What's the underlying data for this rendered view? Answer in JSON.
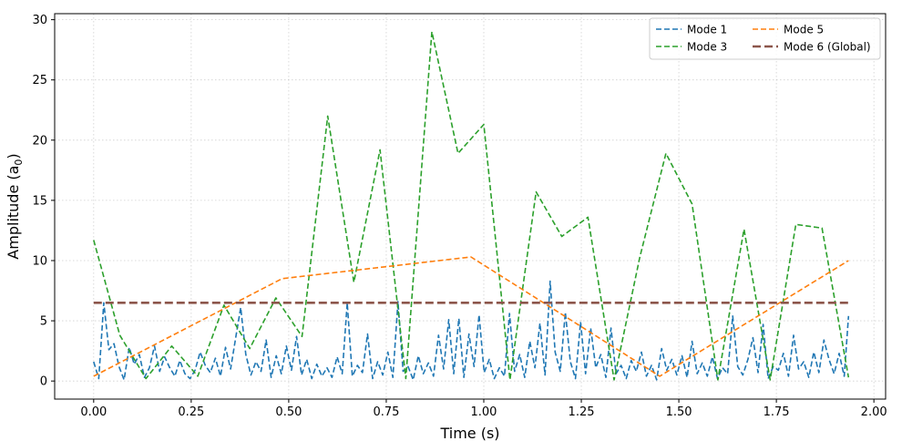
{
  "chart_data": {
    "type": "line",
    "xlabel": "Time (s)",
    "ylabel_main": "Amplitude (a",
    "ylabel_sub": "0",
    "ylabel_end": ")",
    "xlim": [
      -0.1,
      2.03
    ],
    "ylim": [
      -1.5,
      30.5
    ],
    "xticks": [
      0.0,
      0.25,
      0.5,
      0.75,
      1.0,
      1.25,
      1.5,
      1.75,
      2.0
    ],
    "xtick_labels": [
      "0.00",
      "0.25",
      "0.50",
      "0.75",
      "1.00",
      "1.25",
      "1.50",
      "1.75",
      "2.00"
    ],
    "yticks": [
      0,
      5,
      10,
      15,
      20,
      25,
      30
    ],
    "ytick_labels": [
      "0",
      "5",
      "10",
      "15",
      "20",
      "25",
      "30"
    ],
    "grid": true,
    "legend_position": "top-right",
    "legend_columns": 2,
    "series": [
      {
        "name": "Mode 1",
        "color": "#1f77b4",
        "dash": "6,3",
        "width": 1.6,
        "x": [
          0.0,
          0.013,
          0.026,
          0.039,
          0.052,
          0.065,
          0.078,
          0.091,
          0.104,
          0.117,
          0.13,
          0.143,
          0.156,
          0.169,
          0.182,
          0.195,
          0.208,
          0.221,
          0.234,
          0.247,
          0.26,
          0.273,
          0.286,
          0.299,
          0.312,
          0.325,
          0.338,
          0.351,
          0.364,
          0.377,
          0.39,
          0.403,
          0.416,
          0.429,
          0.442,
          0.455,
          0.468,
          0.481,
          0.494,
          0.507,
          0.52,
          0.533,
          0.546,
          0.559,
          0.572,
          0.585,
          0.598,
          0.611,
          0.624,
          0.637,
          0.65,
          0.663,
          0.676,
          0.689,
          0.702,
          0.715,
          0.728,
          0.741,
          0.754,
          0.767,
          0.78,
          0.793,
          0.806,
          0.819,
          0.832,
          0.845,
          0.858,
          0.871,
          0.884,
          0.897,
          0.91,
          0.923,
          0.936,
          0.949,
          0.962,
          0.975,
          0.988,
          1.001,
          1.014,
          1.027,
          1.04,
          1.053,
          1.066,
          1.079,
          1.092,
          1.105,
          1.118,
          1.131,
          1.144,
          1.157,
          1.17,
          1.183,
          1.196,
          1.209,
          1.222,
          1.235,
          1.248,
          1.261,
          1.274,
          1.287,
          1.3,
          1.313,
          1.326,
          1.339,
          1.352,
          1.365,
          1.378,
          1.391,
          1.404,
          1.417,
          1.43,
          1.443,
          1.456,
          1.469,
          1.482,
          1.495,
          1.508,
          1.521,
          1.534,
          1.547,
          1.56,
          1.573,
          1.586,
          1.599,
          1.612,
          1.625,
          1.638,
          1.651,
          1.664,
          1.677,
          1.69,
          1.703,
          1.716,
          1.729,
          1.742,
          1.755,
          1.768,
          1.781,
          1.794,
          1.807,
          1.82,
          1.833,
          1.846,
          1.859,
          1.872,
          1.885,
          1.898,
          1.911,
          1.924,
          1.935
        ],
        "y": [
          1.6,
          0.2,
          6.5,
          2.6,
          3.1,
          1.2,
          0.1,
          2.8,
          1.4,
          2.2,
          0.3,
          1.1,
          2.9,
          0.8,
          2.0,
          1.1,
          0.4,
          1.7,
          0.6,
          0.2,
          0.9,
          2.4,
          1.3,
          0.7,
          1.9,
          0.4,
          2.8,
          1.0,
          3.6,
          6.1,
          2.2,
          0.5,
          1.6,
          0.8,
          3.4,
          0.3,
          2.1,
          0.6,
          2.9,
          0.9,
          3.7,
          0.5,
          1.8,
          0.2,
          1.4,
          0.4,
          1.1,
          0.3,
          2.0,
          0.6,
          6.5,
          0.4,
          1.3,
          0.7,
          3.9,
          0.2,
          1.6,
          0.5,
          2.4,
          0.3,
          6.6,
          0.8,
          1.2,
          0.1,
          2.1,
          0.6,
          1.5,
          0.4,
          3.8,
          1.0,
          5.1,
          0.6,
          5.2,
          0.3,
          3.9,
          1.2,
          5.5,
          0.7,
          1.8,
          0.2,
          1.1,
          0.4,
          5.6,
          0.8,
          2.2,
          0.3,
          3.3,
          1.1,
          4.8,
          0.5,
          8.3,
          2.4,
          0.8,
          5.7,
          1.6,
          0.2,
          4.9,
          0.6,
          4.4,
          1.1,
          2.2,
          0.3,
          4.4,
          0.6,
          1.3,
          0.2,
          1.7,
          0.8,
          2.4,
          0.4,
          1.3,
          0.1,
          2.7,
          0.9,
          1.8,
          0.5,
          2.1,
          0.3,
          3.3,
          0.6,
          1.5,
          0.4,
          2.0,
          0.2,
          1.1,
          0.6,
          5.4,
          1.2,
          0.5,
          1.8,
          3.6,
          0.7,
          4.7,
          0.2,
          1.2,
          0.9,
          2.3,
          0.4,
          3.8,
          1.0,
          1.6,
          0.3,
          2.4,
          0.7,
          3.4,
          1.8,
          0.6,
          2.3,
          0.4,
          5.4
        ]
      },
      {
        "name": "Mode 3",
        "color": "#2ca02c",
        "dash": "6,3",
        "width": 1.6,
        "x": [
          0.0,
          0.067,
          0.134,
          0.2,
          0.267,
          0.334,
          0.4,
          0.467,
          0.534,
          0.6,
          0.667,
          0.734,
          0.8,
          0.867,
          0.934,
          1.0,
          1.067,
          1.134,
          1.2,
          1.267,
          1.334,
          1.4,
          1.467,
          1.534,
          1.6,
          1.667,
          1.734,
          1.8,
          1.867,
          1.935
        ],
        "y": [
          11.7,
          3.8,
          0.2,
          2.9,
          0.4,
          6.3,
          2.7,
          6.9,
          3.7,
          22.0,
          8.2,
          19.2,
          0.2,
          29.0,
          18.9,
          21.3,
          0.1,
          15.7,
          12.0,
          13.6,
          0.1,
          10.3,
          18.9,
          14.7,
          0.1,
          12.6,
          0.1,
          13.0,
          12.7,
          0.3
        ]
      },
      {
        "name": "Mode 5",
        "color": "#ff7f0e",
        "dash": "6,3",
        "width": 1.6,
        "x": [
          0.0,
          0.483,
          0.967,
          1.451,
          1.935
        ],
        "y": [
          0.4,
          8.5,
          10.3,
          0.4,
          10.0
        ]
      },
      {
        "name": "Mode 6 (Global)",
        "color": "#8c564b",
        "dash": "9,4",
        "width": 2.6,
        "x": [
          0.0,
          1.935
        ],
        "y": [
          6.5,
          6.5
        ]
      }
    ],
    "legend_order": [
      "Mode 1",
      "Mode 5",
      "Mode 3",
      "Mode 6 (Global)"
    ]
  }
}
